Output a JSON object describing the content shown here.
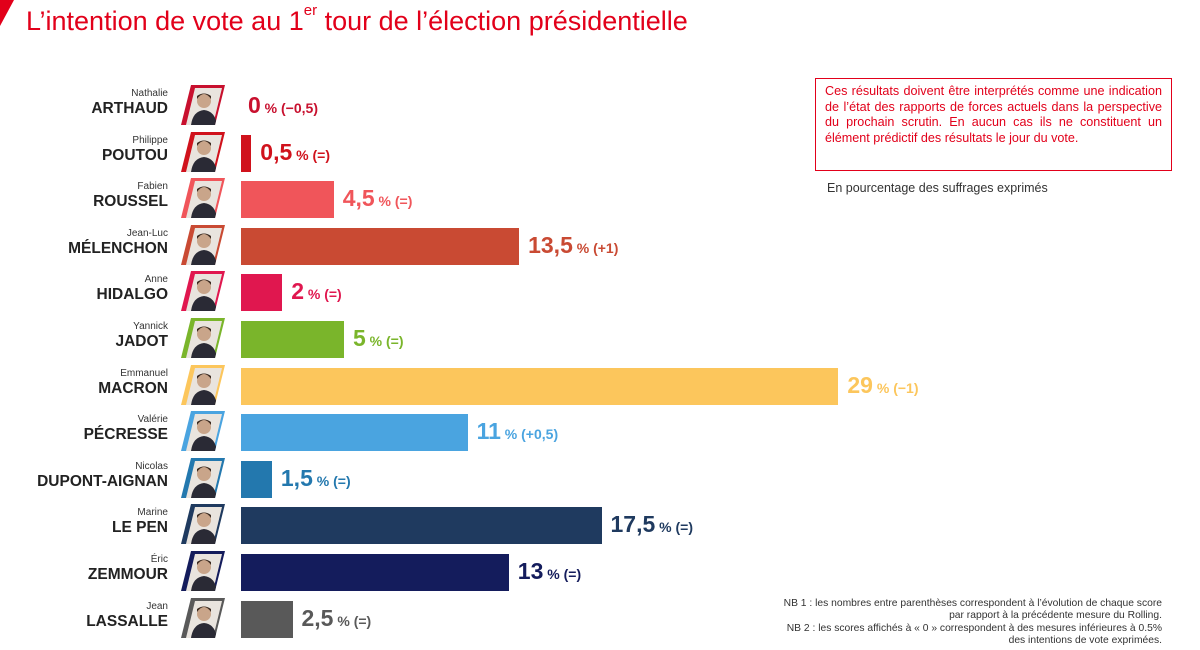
{
  "title_main": "L’intention de vote au 1",
  "title_sup": "er",
  "title_rest": " tour de l’élection présidentielle",
  "warning": "Ces résultats doivent être interprétés comme une indication de l’état des rapports de forces actuels dans la perspective du prochain scrutin. En aucun cas ils ne constituent un élément prédictif des résultats le jour du vote.",
  "units_note": "En pourcentage des suffrages exprimés",
  "footnote_1": "NB 1 : les nombres entre parenthèses correspondent à l’évolution de chaque score par rapport à la précédente mesure du Rolling.",
  "footnote_2": "NB 2 : les scores affichés à « 0 » correspondent à des mesures inférieures à 0.5% des intentions de vote exprimées.",
  "colors": {
    "accent": "#e2001a"
  },
  "chart_data": {
    "type": "bar",
    "orientation": "horizontal",
    "unit": "%",
    "candidates": [
      {
        "first": "Nathalie",
        "last": "ARTHAUD",
        "value": 0,
        "label": "0",
        "change": "% (−0,5)",
        "color": "#c8102e"
      },
      {
        "first": "Philippe",
        "last": "POUTOU",
        "value": 0.5,
        "label": "0,5",
        "change": "% (=)",
        "color": "#d0121c"
      },
      {
        "first": "Fabien",
        "last": "ROUSSEL",
        "value": 4.5,
        "label": "4,5",
        "change": "% (=)",
        "color": "#f0555a"
      },
      {
        "first": "Jean-Luc",
        "last": "MÉLENCHON",
        "value": 13.5,
        "label": "13,5",
        "change": "% (+1)",
        "color": "#c94a33"
      },
      {
        "first": "Anne",
        "last": "HIDALGO",
        "value": 2,
        "label": "2",
        "change": "% (=)",
        "color": "#e0174f"
      },
      {
        "first": "Yannick",
        "last": "JADOT",
        "value": 5,
        "label": "5",
        "change": "% (=)",
        "color": "#7ab52b"
      },
      {
        "first": "Emmanuel",
        "last": "MACRON",
        "value": 29,
        "label": "29",
        "change": "% (−1)",
        "color": "#fcc65c"
      },
      {
        "first": "Valérie",
        "last": "PÉCRESSE",
        "value": 11,
        "label": "11",
        "change": "% (+0,5)",
        "color": "#4aa4e0"
      },
      {
        "first": "Nicolas",
        "last": "DUPONT-AIGNAN",
        "value": 1.5,
        "label": "1,5",
        "change": "% (=)",
        "color": "#2378ae"
      },
      {
        "first": "Marine",
        "last": "LE PEN",
        "value": 17.5,
        "label": "17,5",
        "change": "% (=)",
        "color": "#1f3a5f"
      },
      {
        "first": "Éric",
        "last": "ZEMMOUR",
        "value": 13,
        "label": "13",
        "change": "% (=)",
        "color": "#141c5c"
      },
      {
        "first": "Jean",
        "last": "LASSALLE",
        "value": 2.5,
        "label": "2,5",
        "change": "% (=)",
        "color": "#595959"
      }
    ]
  }
}
